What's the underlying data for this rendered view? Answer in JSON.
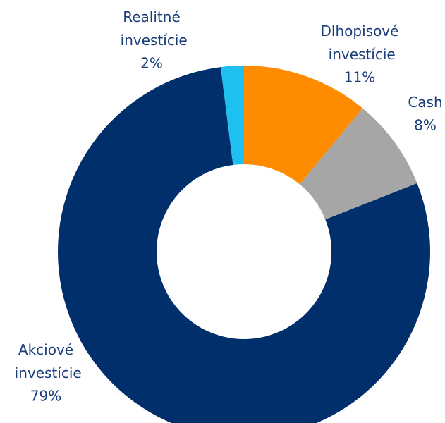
{
  "chart_data": {
    "type": "donut",
    "categories": [
      "Dlhopisové investície",
      "Cash",
      "Akciové investície",
      "Realitné investície"
    ],
    "values": [
      11,
      8,
      79,
      2
    ],
    "value_labels": [
      "11%",
      "8%",
      "79%",
      "2%"
    ],
    "colors": [
      "#ff8c00",
      "#a6a6a6",
      "#002f6c",
      "#1ec0f0"
    ]
  }
}
